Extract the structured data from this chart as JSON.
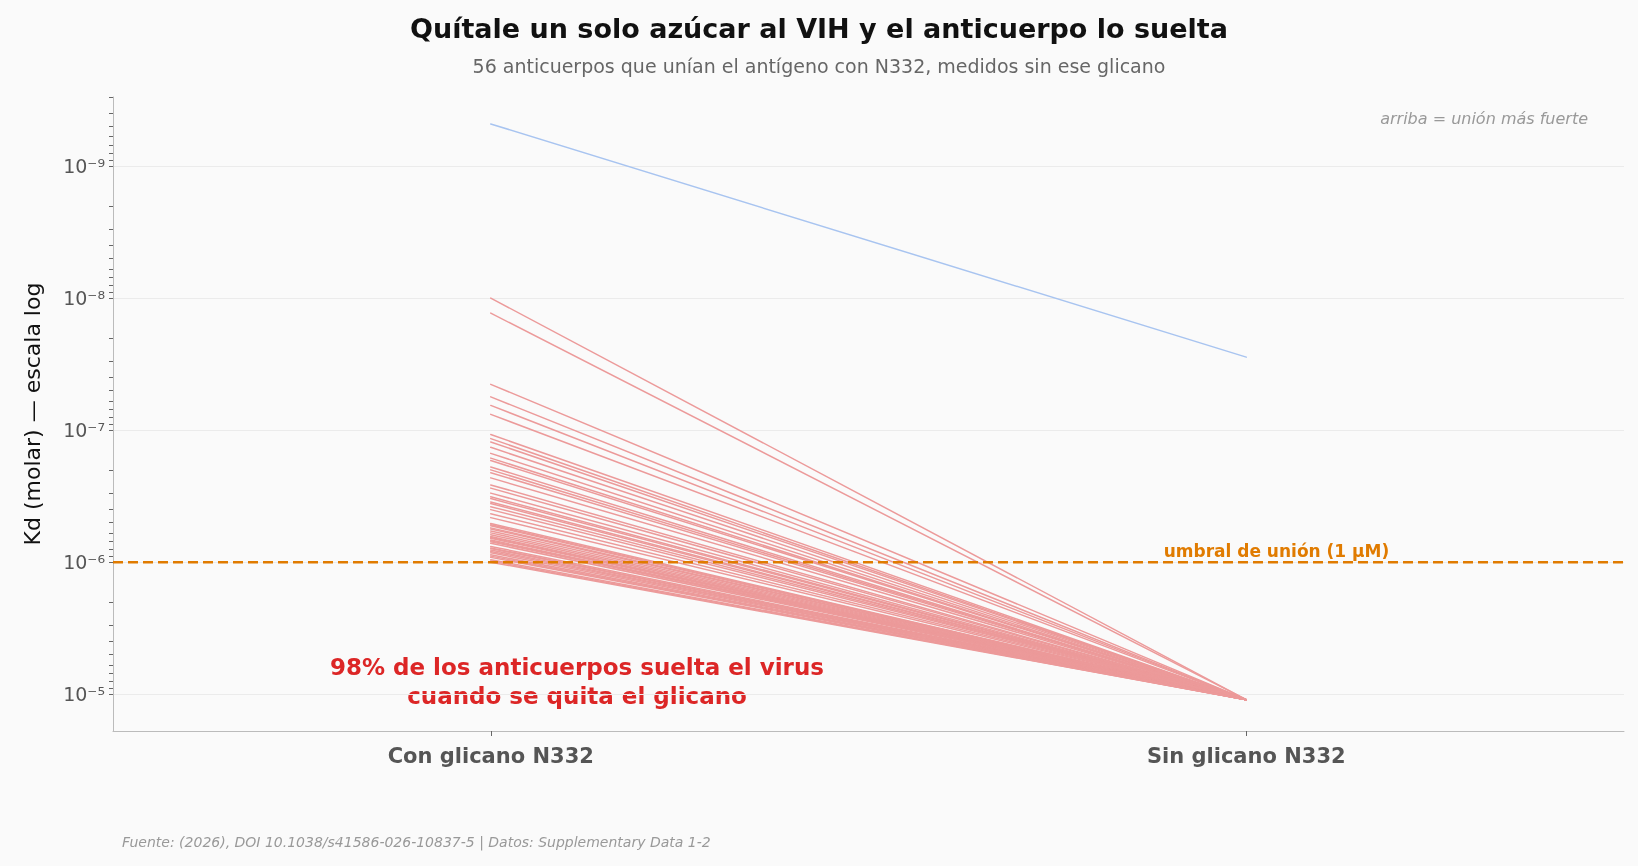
{
  "chart_data": {
    "type": "line",
    "title": "Quítale un solo azúcar al VIH y el anticuerpo lo suelta",
    "subtitle": "56 anticuerpos que unían el antígeno con N332, medidos sin ese glicano",
    "ylabel": "Kd (molar) — escala log",
    "categories": [
      "Con glicano N332",
      "Sin glicano N332"
    ],
    "log": "y",
    "grid": "y",
    "marker": "none",
    "line_style": "solid",
    "ylim": [
      1.9e-05,
      3e-10
    ],
    "yticks": [
      {
        "value": 3e-10,
        "label": null
      },
      {
        "value": 4e-10,
        "label": null
      },
      {
        "value": 5e-10,
        "label": null
      },
      {
        "value": 6e-10,
        "label": null
      },
      {
        "value": 7e-10,
        "label": null
      },
      {
        "value": 8e-10,
        "label": null
      },
      {
        "value": 9e-10,
        "label": null
      },
      {
        "value": 1e-09,
        "label": "10⁻⁹"
      },
      {
        "value": 2e-09,
        "label": null
      },
      {
        "value": 3e-09,
        "label": null
      },
      {
        "value": 4e-09,
        "label": null
      },
      {
        "value": 5e-09,
        "label": null
      },
      {
        "value": 6e-09,
        "label": null
      },
      {
        "value": 7e-09,
        "label": null
      },
      {
        "value": 8e-09,
        "label": null
      },
      {
        "value": 9e-09,
        "label": null
      },
      {
        "value": 1e-08,
        "label": "10⁻⁸"
      },
      {
        "value": 2e-08,
        "label": null
      },
      {
        "value": 3e-08,
        "label": null
      },
      {
        "value": 4e-08,
        "label": null
      },
      {
        "value": 5e-08,
        "label": null
      },
      {
        "value": 6e-08,
        "label": null
      },
      {
        "value": 7e-08,
        "label": null
      },
      {
        "value": 8e-08,
        "label": null
      },
      {
        "value": 9e-08,
        "label": null
      },
      {
        "value": 1e-07,
        "label": "10⁻⁷"
      },
      {
        "value": 2e-07,
        "label": null
      },
      {
        "value": 3e-07,
        "label": null
      },
      {
        "value": 4e-07,
        "label": null
      },
      {
        "value": 5e-07,
        "label": null
      },
      {
        "value": 6e-07,
        "label": null
      },
      {
        "value": 7e-07,
        "label": null
      },
      {
        "value": 8e-07,
        "label": null
      },
      {
        "value": 9e-07,
        "label": null
      },
      {
        "value": 1e-06,
        "label": "10⁻⁶"
      },
      {
        "value": 2e-06,
        "label": null
      },
      {
        "value": 3e-06,
        "label": null
      },
      {
        "value": 4e-06,
        "label": null
      },
      {
        "value": 5e-06,
        "label": null
      },
      {
        "value": 6e-06,
        "label": null
      },
      {
        "value": 7e-06,
        "label": null
      },
      {
        "value": 8e-06,
        "label": null
      },
      {
        "value": 9e-06,
        "label": null
      },
      {
        "value": 1e-05,
        "label": "10⁻⁵"
      }
    ],
    "ref_lines": [
      {
        "axis": "y",
        "value": 1e-06,
        "label": "umbral de unión (1 μM)",
        "color": "#e07b00",
        "line_style": "dashed"
      }
    ],
    "annotations": [
      "arriba = unión más fuerte",
      "98% de los anticuerpos suelta el virus\ncuando se quita el glicano",
      "Fuente: (2026), DOI 10.1038/s41586-026-10837-5 | Datos: Supplementary Data 1-2"
    ],
    "series": [
      {
        "color": "#a8c4f0",
        "values": [
          4.8e-10,
          2.8e-08
        ]
      },
      {
        "color": "#ec9a9a",
        "values": [
          1e-08,
          1.1e-05
        ]
      },
      {
        "color": "#ec9a9a",
        "values": [
          1.3e-08,
          1.1e-05
        ]
      },
      {
        "color": "#ec9a9a",
        "values": [
          4.5e-08,
          1.1e-05
        ]
      },
      {
        "color": "#ec9a9a",
        "values": [
          5.6e-08,
          1.1e-05
        ]
      },
      {
        "color": "#ec9a9a",
        "values": [
          6.5e-08,
          1.1e-05
        ]
      },
      {
        "color": "#ec9a9a",
        "values": [
          7.6e-08,
          1.1e-05
        ]
      },
      {
        "color": "#ec9a9a",
        "values": [
          1.08e-07,
          1.1e-05
        ]
      },
      {
        "color": "#ec9a9a",
        "values": [
          1.16e-07,
          1.1e-05
        ]
      },
      {
        "color": "#ec9a9a",
        "values": [
          1.23e-07,
          1.1e-05
        ]
      },
      {
        "color": "#ec9a9a",
        "values": [
          1.35e-07,
          1.1e-05
        ]
      },
      {
        "color": "#ec9a9a",
        "values": [
          1.63e-07,
          1.1e-05
        ]
      },
      {
        "color": "#ec9a9a",
        "values": [
          1.7e-07,
          1.1e-05
        ]
      },
      {
        "color": "#ec9a9a",
        "values": [
          1.9e-07,
          1.1e-05
        ]
      },
      {
        "color": "#ec9a9a",
        "values": [
          2e-07,
          1.1e-05
        ]
      },
      {
        "color": "#ec9a9a",
        "values": [
          2.1e-07,
          1.1e-05
        ]
      },
      {
        "color": "#ec9a9a",
        "values": [
          2.6e-07,
          1.1e-05
        ]
      },
      {
        "color": "#ec9a9a",
        "values": [
          2.75e-07,
          1.1e-05
        ]
      },
      {
        "color": "#ec9a9a",
        "values": [
          3e-07,
          1.1e-05
        ]
      },
      {
        "color": "#ec9a9a",
        "values": [
          3.2e-07,
          1.1e-05
        ]
      },
      {
        "color": "#ec9a9a",
        "values": [
          3.3e-07,
          1.1e-05
        ]
      },
      {
        "color": "#ec9a9a",
        "values": [
          3.5e-07,
          1.1e-05
        ]
      },
      {
        "color": "#ec9a9a",
        "values": [
          3.6e-07,
          1.1e-05
        ]
      },
      {
        "color": "#ec9a9a",
        "values": [
          3.8e-07,
          1.1e-05
        ]
      },
      {
        "color": "#ec9a9a",
        "values": [
          4e-07,
          1.1e-05
        ]
      },
      {
        "color": "#ec9a9a",
        "values": [
          4.6e-07,
          1.1e-05
        ]
      },
      {
        "color": "#ec9a9a",
        "values": [
          5.1e-07,
          1.1e-05
        ]
      },
      {
        "color": "#ec9a9a",
        "values": [
          5.2e-07,
          1.1e-05
        ]
      },
      {
        "color": "#ec9a9a",
        "values": [
          5.3e-07,
          1.1e-05
        ]
      },
      {
        "color": "#ec9a9a",
        "values": [
          5.5e-07,
          1.1e-05
        ]
      },
      {
        "color": "#ec9a9a",
        "values": [
          5.6e-07,
          1.1e-05
        ]
      },
      {
        "color": "#ec9a9a",
        "values": [
          5.8e-07,
          1.1e-05
        ]
      },
      {
        "color": "#ec9a9a",
        "values": [
          6e-07,
          1.1e-05
        ]
      },
      {
        "color": "#ec9a9a",
        "values": [
          6.2e-07,
          1.1e-05
        ]
      },
      {
        "color": "#ec9a9a",
        "values": [
          6.4e-07,
          1.1e-05
        ]
      },
      {
        "color": "#ec9a9a",
        "values": [
          6.5e-07,
          1.1e-05
        ]
      },
      {
        "color": "#ec9a9a",
        "values": [
          6.6e-07,
          1.1e-05
        ]
      },
      {
        "color": "#ec9a9a",
        "values": [
          6.8e-07,
          1.1e-05
        ]
      },
      {
        "color": "#ec9a9a",
        "values": [
          6.9e-07,
          1.1e-05
        ]
      },
      {
        "color": "#ec9a9a",
        "values": [
          7e-07,
          1.1e-05
        ]
      },
      {
        "color": "#ec9a9a",
        "values": [
          7.2e-07,
          1.1e-05
        ]
      },
      {
        "color": "#ec9a9a",
        "values": [
          4.3e-07,
          1.1e-05
        ]
      },
      {
        "color": "#ec9a9a",
        "values": [
          2.3e-07,
          1.1e-05
        ]
      },
      {
        "color": "#ec9a9a",
        "values": [
          1.5e-07,
          1.1e-05
        ]
      },
      {
        "color": "#ec9a9a",
        "values": [
          7.6e-07,
          1.1e-05
        ]
      },
      {
        "color": "#ec9a9a",
        "values": [
          7.8e-07,
          1.1e-05
        ]
      },
      {
        "color": "#ec9a9a",
        "values": [
          7.9e-07,
          1.1e-05
        ]
      },
      {
        "color": "#ec9a9a",
        "values": [
          8.1e-07,
          1.1e-05
        ]
      },
      {
        "color": "#ec9a9a",
        "values": [
          8.3e-07,
          1.1e-05
        ]
      },
      {
        "color": "#ec9a9a",
        "values": [
          8.5e-07,
          1.1e-05
        ]
      },
      {
        "color": "#ec9a9a",
        "values": [
          8.8e-07,
          1.1e-05
        ]
      },
      {
        "color": "#ec9a9a",
        "values": [
          9e-07,
          1.1e-05
        ]
      },
      {
        "color": "#ec9a9a",
        "values": [
          9.2e-07,
          1.1e-05
        ]
      },
      {
        "color": "#ec9a9a",
        "values": [
          9.6e-07,
          1.1e-05
        ]
      },
      {
        "color": "#ec9a9a",
        "values": [
          9.8e-07,
          1.1e-05
        ]
      },
      {
        "color": "#ec9a9a",
        "values": [
          1e-06,
          1.1e-05
        ]
      }
    ]
  }
}
